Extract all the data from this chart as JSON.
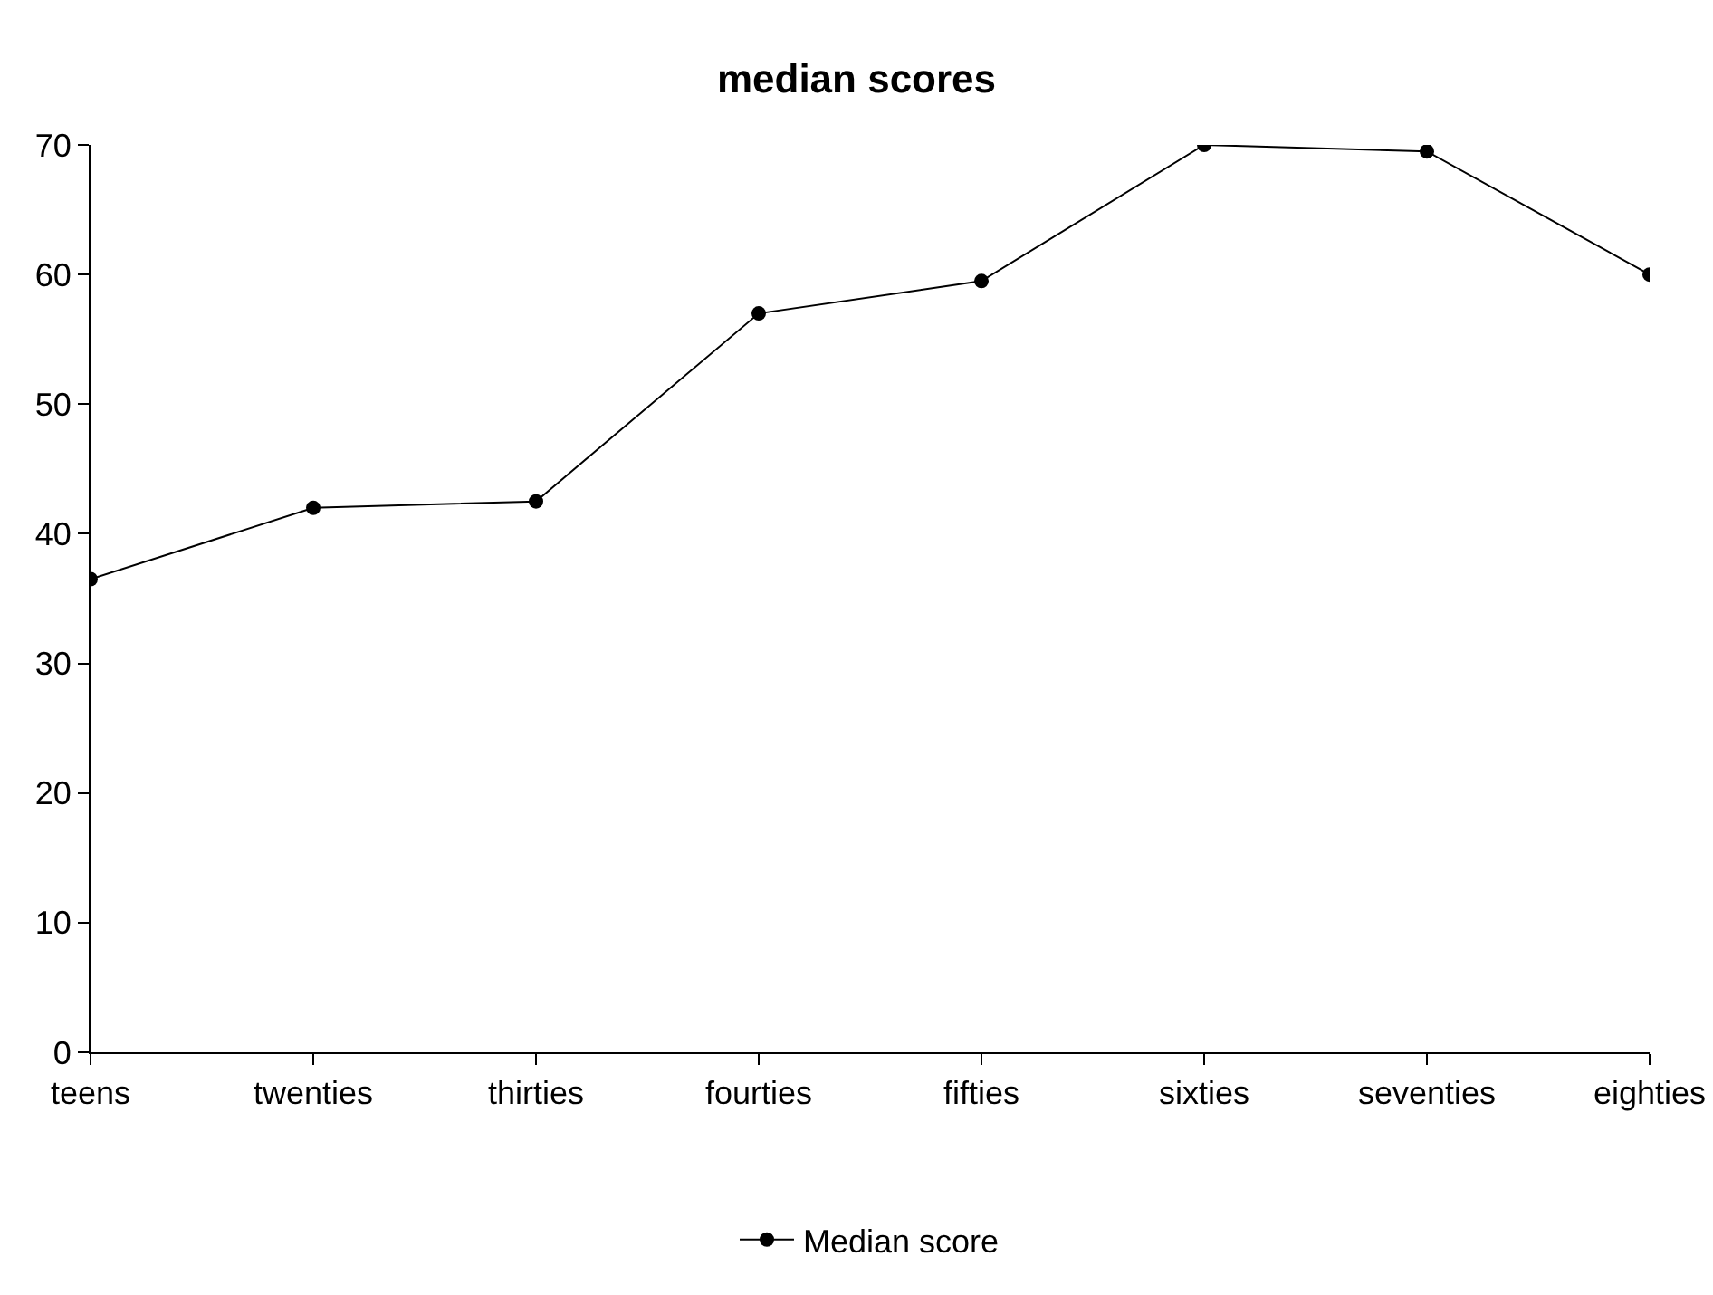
{
  "chart_data": {
    "type": "line",
    "title": "median scores",
    "categories": [
      "teens",
      "twenties",
      "thirties",
      "fourties",
      "fifties",
      "sixties",
      "seventies",
      "eighties"
    ],
    "series": [
      {
        "name": "Median score",
        "color": "#000000",
        "values": [
          36.5,
          42,
          42.5,
          57,
          59.5,
          70,
          69.5,
          60
        ]
      }
    ],
    "ylim": [
      0,
      70
    ],
    "yticks": [
      0,
      10,
      20,
      30,
      40,
      50,
      60,
      70
    ],
    "grid": false,
    "legend": "bottom",
    "marker": "circle",
    "line_style": "solid"
  }
}
